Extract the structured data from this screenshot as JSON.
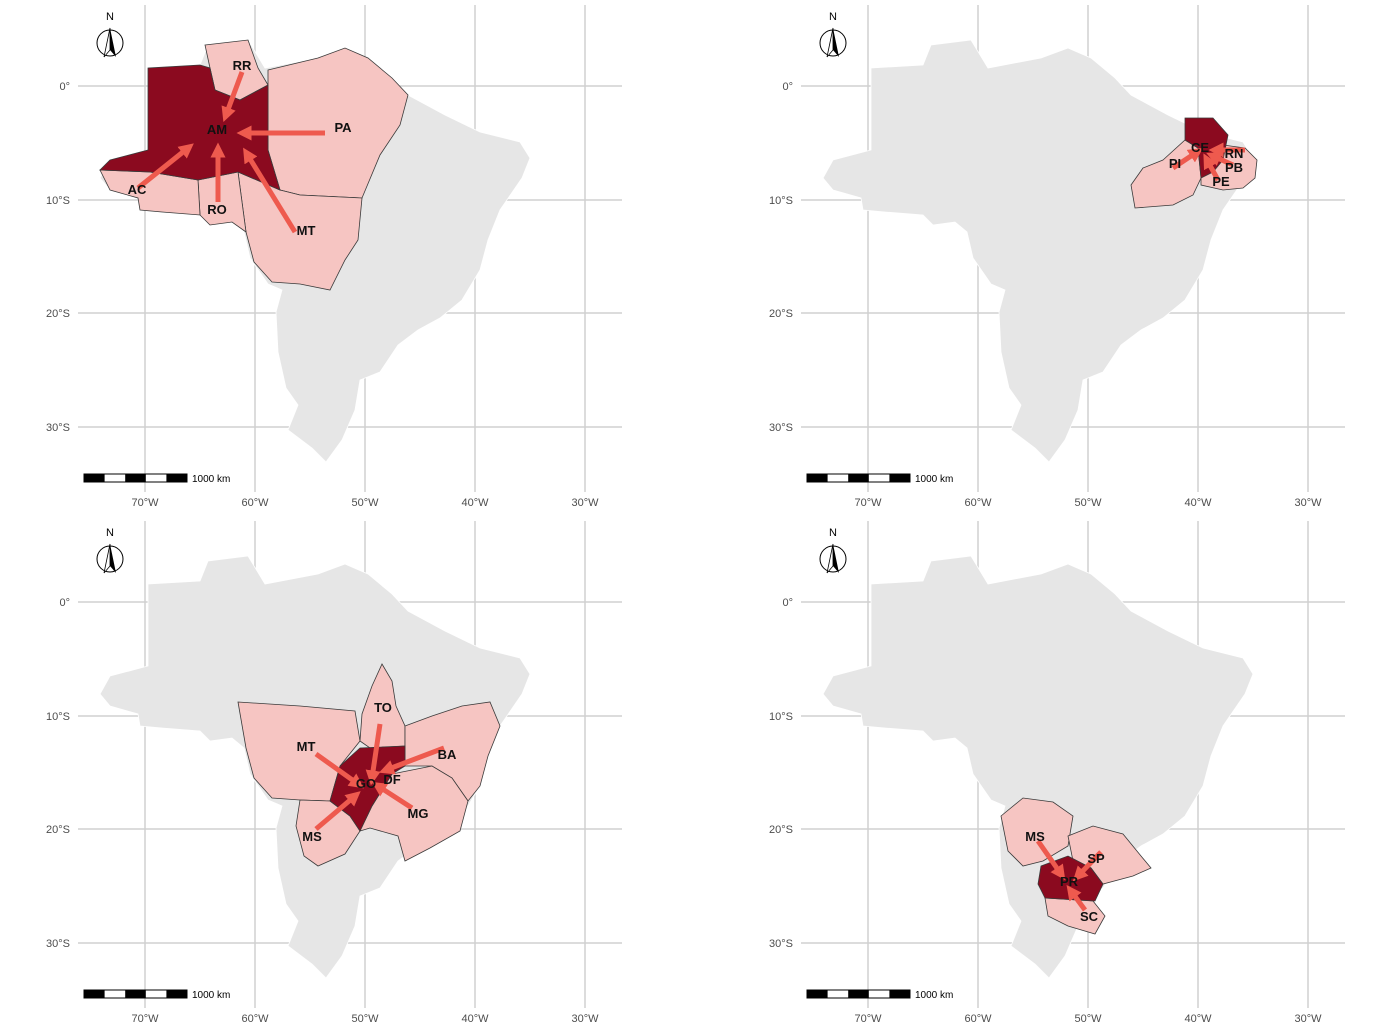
{
  "colors": {
    "background": "#ffffff",
    "country_fill": "#e6e6e6",
    "neighbor_fill": "#f6c5c2",
    "hub_fill": "#8b0a1f",
    "arrow": "#ee5a4e",
    "grid": "#d0d0d0"
  },
  "axes": {
    "x_ticks": [
      "70°W",
      "60°W",
      "50°W",
      "40°W",
      "30°W"
    ],
    "y_ticks": [
      "0°",
      "10°S",
      "20°S",
      "30°S"
    ]
  },
  "north_label": "N",
  "scale_label": "1000 km",
  "panels": [
    {
      "hub": "AM",
      "states": [
        "RR",
        "AM",
        "PA",
        "AC",
        "RO",
        "MT"
      ]
    },
    {
      "hub": "CE",
      "states": [
        "CE",
        "RN",
        "PI",
        "PB",
        "PE"
      ]
    },
    {
      "hub": "GO",
      "states": [
        "TO",
        "MT",
        "BA",
        "GO",
        "DF",
        "MS",
        "MG"
      ]
    },
    {
      "hub": "PR",
      "states": [
        "MS",
        "SP",
        "PR",
        "SC"
      ]
    }
  ]
}
